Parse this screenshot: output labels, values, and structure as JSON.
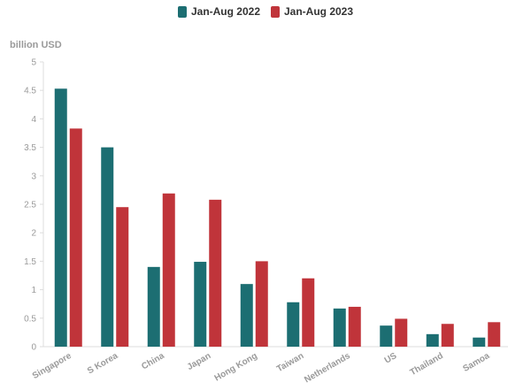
{
  "legend": [
    {
      "label": "Jan-Aug 2022",
      "color": "#1c6e72"
    },
    {
      "label": "Jan-Aug 2023",
      "color": "#c0343a"
    }
  ],
  "unit_label": "billion USD",
  "chart_data": {
    "type": "bar",
    "categories": [
      "Singapore",
      "S Korea",
      "China",
      "Japan",
      "Hong Kong",
      "Taiwan",
      "Netherlands",
      "US",
      "Thailand",
      "Samoa"
    ],
    "series": [
      {
        "name": "Jan-Aug 2022",
        "color": "#1c6e72",
        "values": [
          4.53,
          3.5,
          1.4,
          1.49,
          1.1,
          0.78,
          0.67,
          0.37,
          0.22,
          0.16
        ]
      },
      {
        "name": "Jan-Aug 2023",
        "color": "#c0343a",
        "values": [
          3.83,
          2.45,
          2.69,
          2.58,
          1.5,
          1.2,
          0.7,
          0.49,
          0.4,
          0.43
        ]
      }
    ],
    "ylabel": "billion USD",
    "ylim": [
      0,
      5
    ],
    "yticks": [
      "0",
      "0.5",
      "1",
      "1.5",
      "2",
      "2.5",
      "3",
      "3.5",
      "4",
      "4.5",
      "5"
    ],
    "grid": false,
    "legend_position": "top-center"
  }
}
